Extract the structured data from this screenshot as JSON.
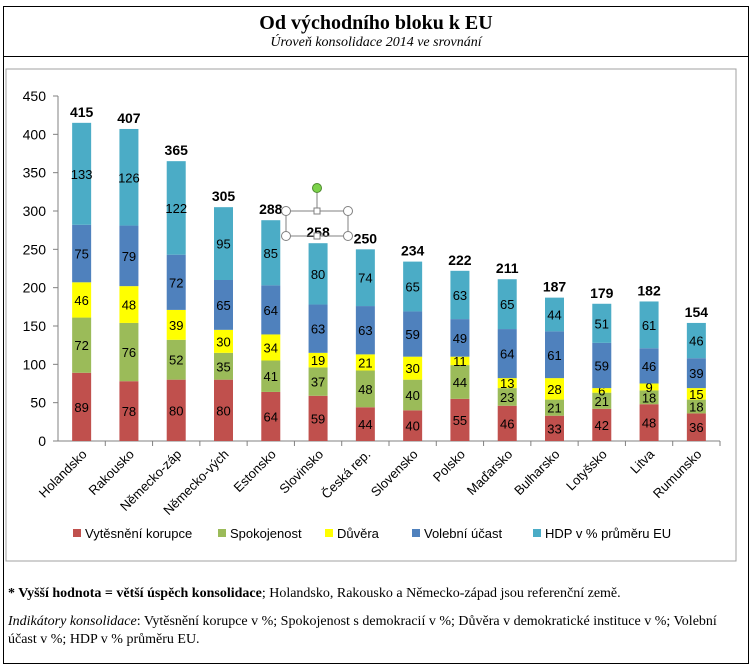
{
  "header": {
    "title": "Od východního bloku k EU",
    "subtitle": "Úroveň konsolidace 2014 ve srovnání"
  },
  "chart_data": {
    "type": "bar",
    "stacked": true,
    "title": "Od východního bloku k EU",
    "subtitle": "Úroveň konsolidace 2014 ve srovnání",
    "xlabel": "",
    "ylabel": "",
    "ylim": [
      0,
      450
    ],
    "yticks": [
      0,
      50,
      100,
      150,
      200,
      250,
      300,
      350,
      400,
      450
    ],
    "grid": false,
    "legend_position": "bottom",
    "categories": [
      "Holandsko",
      "Rakousko",
      "Německo-záp",
      "Německo-vých",
      "Estonsko",
      "Slovinsko",
      "Česká rep.",
      "Slovensko",
      "Polsko",
      "Maďarsko",
      "Bulharsko",
      "Lotyšsko",
      "Litva",
      "Rumunsko"
    ],
    "series": [
      {
        "name": "Vytěsnění korupce",
        "color": "#C0504D",
        "values": [
          89,
          78,
          80,
          80,
          64,
          59,
          44,
          40,
          55,
          46,
          33,
          42,
          48,
          36
        ]
      },
      {
        "name": "Spokojenost",
        "color": "#9BBB59",
        "values": [
          72,
          76,
          52,
          35,
          41,
          37,
          48,
          40,
          44,
          23,
          21,
          21,
          18,
          18
        ]
      },
      {
        "name": "Důvěra",
        "color": "#FFFF00",
        "values": [
          46,
          48,
          39,
          30,
          34,
          19,
          21,
          30,
          11,
          13,
          28,
          6,
          9,
          15
        ]
      },
      {
        "name": "Volební účast",
        "color": "#4F81BD",
        "values": [
          75,
          79,
          72,
          65,
          64,
          63,
          63,
          59,
          49,
          64,
          61,
          59,
          46,
          39
        ]
      },
      {
        "name": "HDP v % průměru EU",
        "color": "#4BACC6",
        "values": [
          133,
          126,
          122,
          95,
          85,
          80,
          74,
          65,
          63,
          65,
          44,
          51,
          61,
          46
        ]
      }
    ],
    "totals": [
      415,
      407,
      365,
      305,
      288,
      258,
      250,
      234,
      222,
      211,
      187,
      179,
      182,
      154
    ]
  },
  "notes": {
    "line1_bold": "* Vyšší hodnota = větší úspěch konsolidace",
    "line1_rest": "; Holandsko, Rakousko a Německo-západ jsou referenční země.",
    "line2_label": "Indikátory konsolidace",
    "line2_rest": ": Vytěsnění korupce v %; Spokojenost s demokracií v %; Důvěra v demokratické instituce v %; Volební účast v %; HDP v % průměru EU."
  }
}
